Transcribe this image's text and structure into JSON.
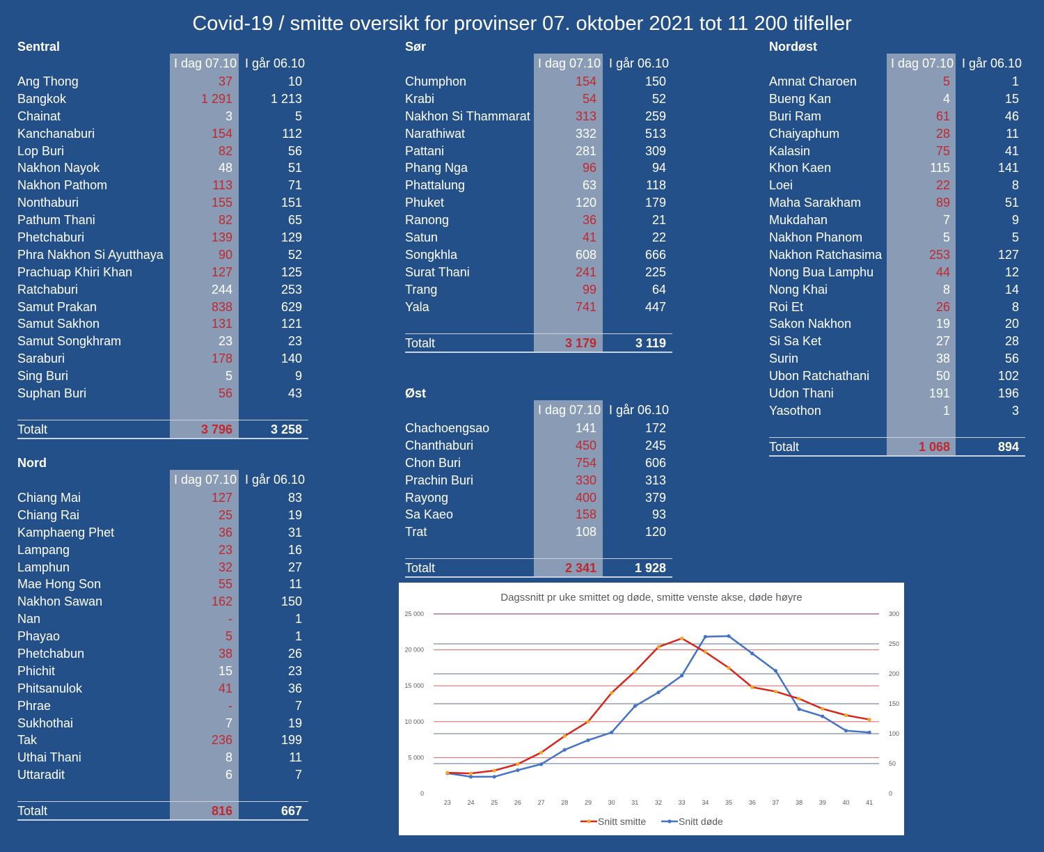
{
  "title": "Covid-19 / smitte oversikt for provinser 07. oktober 2021 tot 11 200 tilfeller",
  "col_today": "I dag 07.10",
  "col_yesterday": "I går 06.10",
  "total_label": "Totalt",
  "regions": {
    "sentral": {
      "name": "Sentral",
      "rows": [
        {
          "name": "Ang Thong",
          "today": "37",
          "yest": "10",
          "up": true
        },
        {
          "name": "Bangkok",
          "today": "1 291",
          "yest": "1 213",
          "up": true
        },
        {
          "name": "Chainat",
          "today": "3",
          "yest": "5",
          "up": false
        },
        {
          "name": "Kanchanaburi",
          "today": "154",
          "yest": "112",
          "up": true
        },
        {
          "name": "Lop Buri",
          "today": "82",
          "yest": "56",
          "up": true
        },
        {
          "name": "Nakhon Nayok",
          "today": "48",
          "yest": "51",
          "up": false
        },
        {
          "name": "Nakhon Pathom",
          "today": "113",
          "yest": "71",
          "up": true
        },
        {
          "name": "Nonthaburi",
          "today": "155",
          "yest": "151",
          "up": true
        },
        {
          "name": "Pathum Thani",
          "today": "82",
          "yest": "65",
          "up": true
        },
        {
          "name": "Phetchaburi",
          "today": "139",
          "yest": "129",
          "up": true
        },
        {
          "name": "Phra Nakhon Si Ayutthaya",
          "today": "90",
          "yest": "52",
          "up": true
        },
        {
          "name": "Prachuap Khiri Khan",
          "today": "127",
          "yest": "125",
          "up": true
        },
        {
          "name": "Ratchaburi",
          "today": "244",
          "yest": "253",
          "up": false
        },
        {
          "name": "Samut Prakan",
          "today": "838",
          "yest": "629",
          "up": true
        },
        {
          "name": "Samut Sakhon",
          "today": "131",
          "yest": "121",
          "up": true
        },
        {
          "name": "Samut Songkhram",
          "today": "23",
          "yest": "23",
          "up": false
        },
        {
          "name": "Saraburi",
          "today": "178",
          "yest": "140",
          "up": true
        },
        {
          "name": "Sing Buri",
          "today": "5",
          "yest": "9",
          "up": false
        },
        {
          "name": "Suphan Buri",
          "today": "56",
          "yest": "43",
          "up": true
        }
      ],
      "total_today": "3 796",
      "total_yest": "3 258"
    },
    "nord": {
      "name": "Nord",
      "rows": [
        {
          "name": "Chiang Mai",
          "today": "127",
          "yest": "83",
          "up": true
        },
        {
          "name": "Chiang Rai",
          "today": "25",
          "yest": "19",
          "up": true
        },
        {
          "name": "Kamphaeng Phet",
          "today": "36",
          "yest": "31",
          "up": true
        },
        {
          "name": "Lampang",
          "today": "23",
          "yest": "16",
          "up": true
        },
        {
          "name": "Lamphun",
          "today": "32",
          "yest": "27",
          "up": true
        },
        {
          "name": "Mae Hong Son",
          "today": "55",
          "yest": "11",
          "up": true
        },
        {
          "name": "Nakhon Sawan",
          "today": "162",
          "yest": "150",
          "up": true
        },
        {
          "name": "Nan",
          "today": "-",
          "yest": "1",
          "up": true
        },
        {
          "name": "Phayao",
          "today": "5",
          "yest": "1",
          "up": true
        },
        {
          "name": "Phetchabun",
          "today": "38",
          "yest": "26",
          "up": true
        },
        {
          "name": "Phichit",
          "today": "15",
          "yest": "23",
          "up": false
        },
        {
          "name": "Phitsanulok",
          "today": "41",
          "yest": "36",
          "up": true
        },
        {
          "name": "Phrae",
          "today": "-",
          "yest": "7",
          "up": true
        },
        {
          "name": "Sukhothai",
          "today": "7",
          "yest": "19",
          "up": false
        },
        {
          "name": "Tak",
          "today": "236",
          "yest": "199",
          "up": true
        },
        {
          "name": "Uthai Thani",
          "today": "8",
          "yest": "11",
          "up": false
        },
        {
          "name": "Uttaradit",
          "today": "6",
          "yest": "7",
          "up": false
        }
      ],
      "total_today": "816",
      "total_yest": "667"
    },
    "sor": {
      "name": "Sør",
      "rows": [
        {
          "name": "Chumphon",
          "today": "154",
          "yest": "150",
          "up": true
        },
        {
          "name": "Krabi",
          "today": "54",
          "yest": "52",
          "up": true
        },
        {
          "name": "Nakhon Si Thammarat",
          "today": "313",
          "yest": "259",
          "up": true
        },
        {
          "name": "Narathiwat",
          "today": "332",
          "yest": "513",
          "up": false
        },
        {
          "name": "Pattani",
          "today": "281",
          "yest": "309",
          "up": false
        },
        {
          "name": "Phang Nga",
          "today": "96",
          "yest": "94",
          "up": true
        },
        {
          "name": "Phattalung",
          "today": "63",
          "yest": "118",
          "up": false
        },
        {
          "name": "Phuket",
          "today": "120",
          "yest": "179",
          "up": false
        },
        {
          "name": "Ranong",
          "today": "36",
          "yest": "21",
          "up": true
        },
        {
          "name": "Satun",
          "today": "41",
          "yest": "22",
          "up": true
        },
        {
          "name": "Songkhla",
          "today": "608",
          "yest": "666",
          "up": false
        },
        {
          "name": "Surat Thani",
          "today": "241",
          "yest": "225",
          "up": true
        },
        {
          "name": "Trang",
          "today": "99",
          "yest": "64",
          "up": true
        },
        {
          "name": "Yala",
          "today": "741",
          "yest": "447",
          "up": true
        }
      ],
      "total_today": "3 179",
      "total_yest": "3 119"
    },
    "ost": {
      "name": "Øst",
      "rows": [
        {
          "name": "Chachoengsao",
          "today": "141",
          "yest": "172",
          "up": false
        },
        {
          "name": "Chanthaburi",
          "today": "450",
          "yest": "245",
          "up": true
        },
        {
          "name": "Chon Buri",
          "today": "754",
          "yest": "606",
          "up": true
        },
        {
          "name": "Prachin Buri",
          "today": "330",
          "yest": "313",
          "up": true
        },
        {
          "name": "Rayong",
          "today": "400",
          "yest": "379",
          "up": true
        },
        {
          "name": "Sa Kaeo",
          "today": "158",
          "yest": "93",
          "up": true
        },
        {
          "name": "Trat",
          "today": "108",
          "yest": "120",
          "up": false
        }
      ],
      "total_today": "2 341",
      "total_yest": "1 928"
    },
    "nordost": {
      "name": "Nordøst",
      "rows": [
        {
          "name": "Amnat Charoen",
          "today": "5",
          "yest": "1",
          "up": true
        },
        {
          "name": "Bueng Kan",
          "today": "4",
          "yest": "15",
          "up": false
        },
        {
          "name": "Buri Ram",
          "today": "61",
          "yest": "46",
          "up": true
        },
        {
          "name": "Chaiyaphum",
          "today": "28",
          "yest": "11",
          "up": true
        },
        {
          "name": "Kalasin",
          "today": "75",
          "yest": "41",
          "up": true
        },
        {
          "name": "Khon Kaen",
          "today": "115",
          "yest": "141",
          "up": false
        },
        {
          "name": "Loei",
          "today": "22",
          "yest": "8",
          "up": true
        },
        {
          "name": "Maha Sarakham",
          "today": "89",
          "yest": "51",
          "up": true
        },
        {
          "name": "Mukdahan",
          "today": "7",
          "yest": "9",
          "up": false
        },
        {
          "name": "Nakhon Phanom",
          "today": "5",
          "yest": "5",
          "up": false
        },
        {
          "name": "Nakhon Ratchasima",
          "today": "253",
          "yest": "127",
          "up": true
        },
        {
          "name": "Nong Bua Lamphu",
          "today": "44",
          "yest": "12",
          "up": true
        },
        {
          "name": "Nong Khai",
          "today": "8",
          "yest": "14",
          "up": false
        },
        {
          "name": "Roi Et",
          "today": "26",
          "yest": "8",
          "up": true
        },
        {
          "name": "Sakon Nakhon",
          "today": "19",
          "yest": "20",
          "up": false
        },
        {
          "name": "Si Sa Ket",
          "today": "27",
          "yest": "28",
          "up": false
        },
        {
          "name": "Surin",
          "today": "38",
          "yest": "56",
          "up": false
        },
        {
          "name": "Ubon Ratchathani",
          "today": "50",
          "yest": "102",
          "up": false
        },
        {
          "name": "Udon Thani",
          "today": "191",
          "yest": "196",
          "up": false
        },
        {
          "name": "Yasothon",
          "today": "1",
          "yest": "3",
          "up": false
        }
      ],
      "total_today": "1 068",
      "total_yest": "894"
    }
  },
  "colors": {
    "background": "#24508a",
    "shade": "#8a9bb6",
    "increase": "#c0282d",
    "smitte_line": "#d9261c",
    "dode_line": "#4472c4",
    "marker": "#f5a623"
  },
  "chart_data": {
    "type": "line",
    "title": "Dagssnitt pr uke smittet og døde, smitte venste akse, døde høyre",
    "x": [
      23,
      24,
      25,
      26,
      27,
      28,
      29,
      30,
      31,
      32,
      33,
      34,
      35,
      36,
      37,
      38,
      39,
      40,
      41
    ],
    "series": [
      {
        "name": "Snitt smitte",
        "axis": "left",
        "values": [
          2900,
          2800,
          3200,
          4100,
          5700,
          8000,
          10000,
          14000,
          17000,
          20400,
          21600,
          19700,
          17500,
          14800,
          14200,
          13200,
          11800,
          10900,
          10300
        ]
      },
      {
        "name": "Snitt døde",
        "axis": "right",
        "values": [
          34,
          28,
          28,
          39,
          49,
          73,
          89,
          102,
          146,
          169,
          197,
          262,
          263,
          234,
          205,
          141,
          129,
          105,
          102
        ]
      }
    ],
    "y_left": {
      "min": 0,
      "max": 25000,
      "ticks": [
        "0",
        "5 000",
        "10 000",
        "15 000",
        "20 000",
        "25 000"
      ]
    },
    "y_right": {
      "min": 0,
      "max": 300,
      "ticks": [
        "0",
        "50",
        "100",
        "150",
        "200",
        "250",
        "300"
      ]
    },
    "legend_position": "bottom",
    "grid": true
  }
}
